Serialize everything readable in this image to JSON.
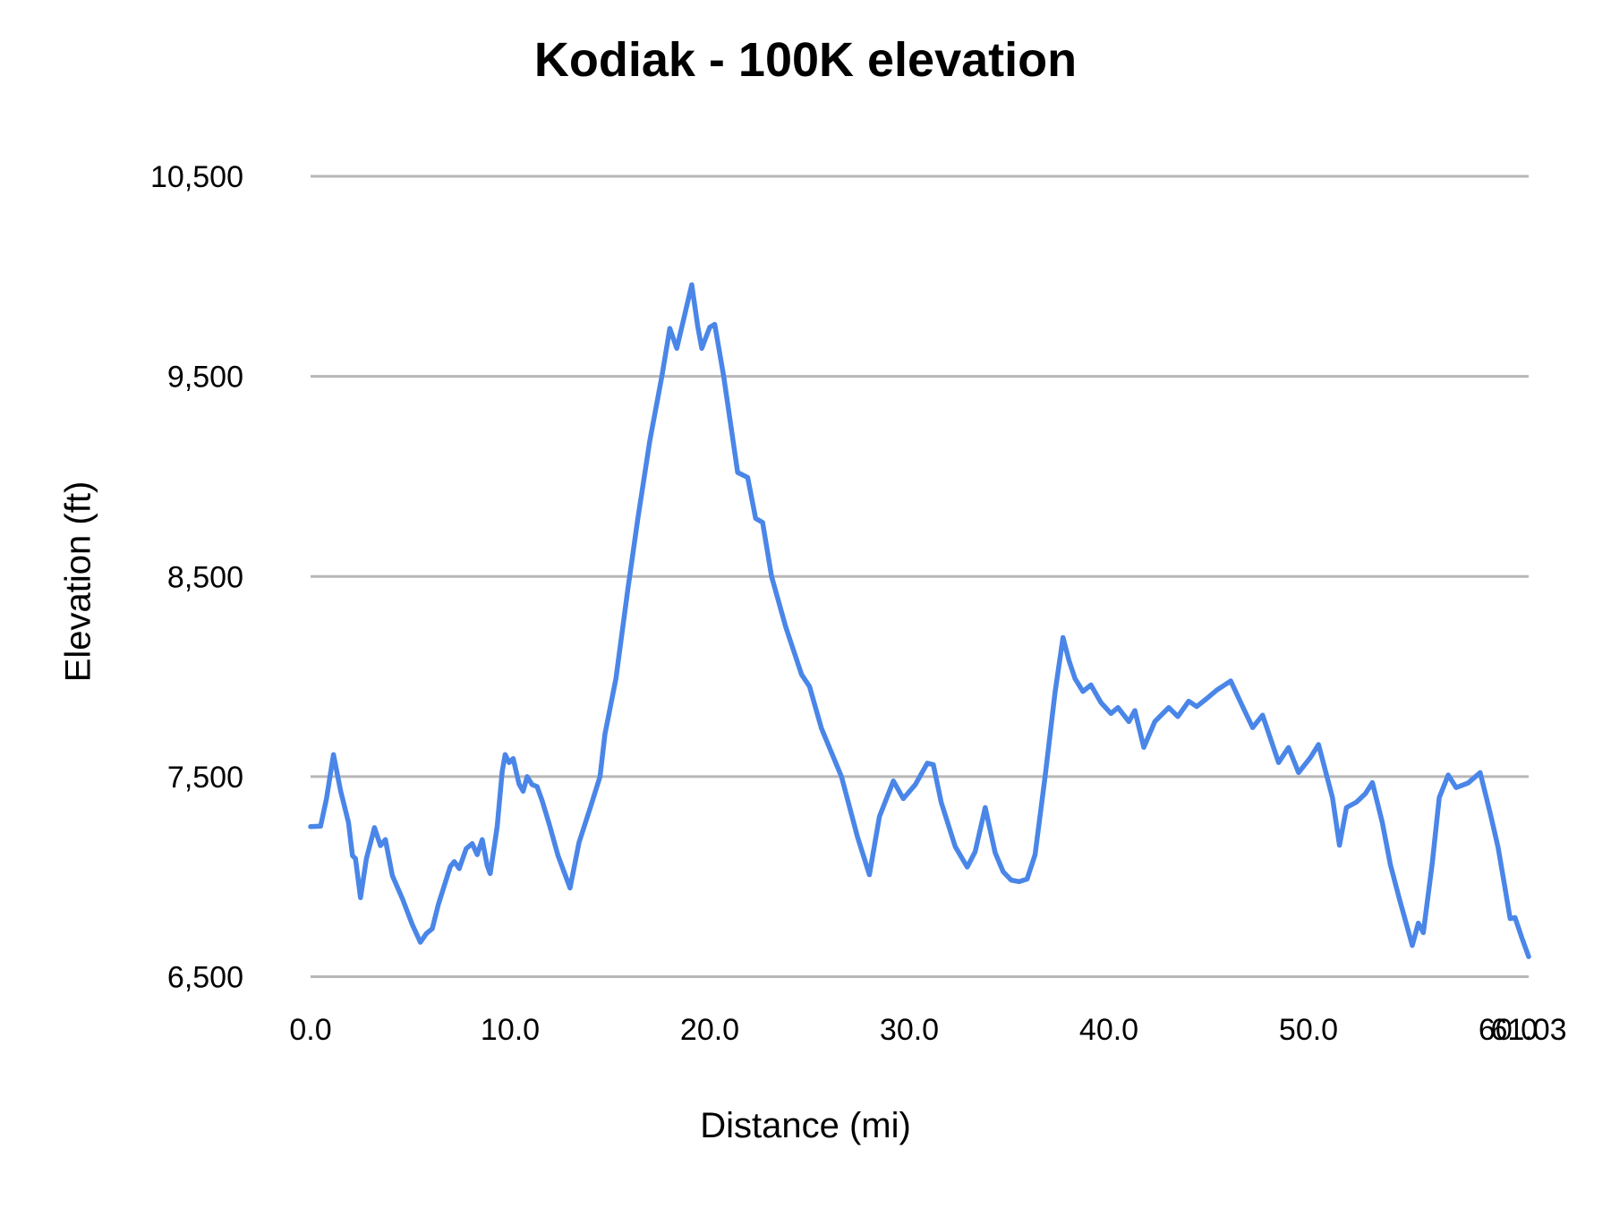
{
  "chart_data": {
    "type": "line",
    "title": "Kodiak - 100K elevation",
    "xlabel": "Distance (mi)",
    "ylabel": "Elevation (ft)",
    "xlim": [
      0,
      61.03
    ],
    "ylim": [
      6500,
      10500
    ],
    "grid": "horizontal-only",
    "legend_position": "none",
    "colors": {
      "line": "#4a86e8",
      "gridline": "#b7b7b7",
      "text": "#000000",
      "background": "#ffffff"
    },
    "x_ticks": [
      {
        "value": 0,
        "label": "0.0"
      },
      {
        "value": 10,
        "label": "10.0"
      },
      {
        "value": 20,
        "label": "20.0"
      },
      {
        "value": 30,
        "label": "30.0"
      },
      {
        "value": 40,
        "label": "40.0"
      },
      {
        "value": 50,
        "label": "50.0"
      },
      {
        "value": 60,
        "label": "60.0"
      },
      {
        "value": 61.03,
        "label": "61.03"
      }
    ],
    "y_ticks": [
      {
        "value": 6500,
        "label": "6,500"
      },
      {
        "value": 7500,
        "label": "7,500"
      },
      {
        "value": 8500,
        "label": "8,500"
      },
      {
        "value": 9500,
        "label": "9,500"
      },
      {
        "value": 10500,
        "label": "10,500"
      }
    ],
    "series": [
      {
        "name": "Elevation (ft)",
        "points": [
          [
            0.0,
            7250
          ],
          [
            0.5,
            7252
          ],
          [
            0.8,
            7390
          ],
          [
            1.15,
            7610
          ],
          [
            1.5,
            7430
          ],
          [
            1.9,
            7270
          ],
          [
            2.1,
            7105
          ],
          [
            2.25,
            7090
          ],
          [
            2.5,
            6895
          ],
          [
            2.8,
            7090
          ],
          [
            3.2,
            7245
          ],
          [
            3.5,
            7155
          ],
          [
            3.75,
            7185
          ],
          [
            4.1,
            7005
          ],
          [
            4.6,
            6890
          ],
          [
            5.1,
            6760
          ],
          [
            5.5,
            6672
          ],
          [
            5.8,
            6715
          ],
          [
            6.1,
            6740
          ],
          [
            6.4,
            6860
          ],
          [
            6.7,
            6955
          ],
          [
            7.0,
            7050
          ],
          [
            7.2,
            7075
          ],
          [
            7.45,
            7040
          ],
          [
            7.8,
            7140
          ],
          [
            8.1,
            7165
          ],
          [
            8.35,
            7110
          ],
          [
            8.6,
            7185
          ],
          [
            8.85,
            7055
          ],
          [
            9.0,
            7015
          ],
          [
            9.35,
            7250
          ],
          [
            9.6,
            7525
          ],
          [
            9.75,
            7610
          ],
          [
            9.95,
            7570
          ],
          [
            10.15,
            7590
          ],
          [
            10.45,
            7462
          ],
          [
            10.65,
            7427
          ],
          [
            10.85,
            7500
          ],
          [
            11.1,
            7460
          ],
          [
            11.35,
            7450
          ],
          [
            11.6,
            7380
          ],
          [
            11.95,
            7265
          ],
          [
            12.4,
            7105
          ],
          [
            13.0,
            6943
          ],
          [
            13.45,
            7170
          ],
          [
            14.0,
            7340
          ],
          [
            14.5,
            7500
          ],
          [
            14.75,
            7712
          ],
          [
            15.3,
            7990
          ],
          [
            15.9,
            8440
          ],
          [
            16.4,
            8790
          ],
          [
            17.0,
            9180
          ],
          [
            17.6,
            9500
          ],
          [
            18.0,
            9740
          ],
          [
            18.35,
            9640
          ],
          [
            18.8,
            9830
          ],
          [
            19.1,
            9958
          ],
          [
            19.4,
            9750
          ],
          [
            19.6,
            9640
          ],
          [
            20.0,
            9745
          ],
          [
            20.25,
            9760
          ],
          [
            20.7,
            9500
          ],
          [
            21.4,
            9020
          ],
          [
            21.9,
            8995
          ],
          [
            22.3,
            8790
          ],
          [
            22.65,
            8770
          ],
          [
            23.1,
            8500
          ],
          [
            23.8,
            8250
          ],
          [
            24.6,
            8010
          ],
          [
            25.0,
            7950
          ],
          [
            25.6,
            7740
          ],
          [
            26.6,
            7500
          ],
          [
            27.4,
            7200
          ],
          [
            28.0,
            7010
          ],
          [
            28.5,
            7300
          ],
          [
            29.2,
            7478
          ],
          [
            29.7,
            7390
          ],
          [
            30.3,
            7460
          ],
          [
            30.9,
            7567
          ],
          [
            31.2,
            7560
          ],
          [
            31.6,
            7370
          ],
          [
            32.3,
            7150
          ],
          [
            32.9,
            7048
          ],
          [
            33.3,
            7125
          ],
          [
            33.8,
            7345
          ],
          [
            34.3,
            7120
          ],
          [
            34.7,
            7025
          ],
          [
            35.1,
            6983
          ],
          [
            35.5,
            6975
          ],
          [
            35.9,
            6988
          ],
          [
            36.3,
            7110
          ],
          [
            36.8,
            7500
          ],
          [
            37.3,
            7920
          ],
          [
            37.7,
            8195
          ],
          [
            38.0,
            8080
          ],
          [
            38.3,
            7990
          ],
          [
            38.7,
            7925
          ],
          [
            39.1,
            7958
          ],
          [
            39.6,
            7870
          ],
          [
            40.1,
            7815
          ],
          [
            40.45,
            7845
          ],
          [
            41.0,
            7775
          ],
          [
            41.3,
            7830
          ],
          [
            41.75,
            7646
          ],
          [
            42.3,
            7775
          ],
          [
            43.0,
            7845
          ],
          [
            43.45,
            7800
          ],
          [
            44.0,
            7877
          ],
          [
            44.4,
            7850
          ],
          [
            44.9,
            7890
          ],
          [
            45.4,
            7932
          ],
          [
            46.1,
            7978
          ],
          [
            46.7,
            7850
          ],
          [
            47.2,
            7745
          ],
          [
            47.7,
            7807
          ],
          [
            48.5,
            7570
          ],
          [
            49.0,
            7645
          ],
          [
            49.5,
            7520
          ],
          [
            50.1,
            7596
          ],
          [
            50.5,
            7660
          ],
          [
            51.2,
            7395
          ],
          [
            51.55,
            7157
          ],
          [
            51.9,
            7345
          ],
          [
            52.4,
            7372
          ],
          [
            52.85,
            7415
          ],
          [
            53.2,
            7470
          ],
          [
            53.7,
            7270
          ],
          [
            54.1,
            7060
          ],
          [
            54.55,
            6890
          ],
          [
            55.2,
            6656
          ],
          [
            55.5,
            6768
          ],
          [
            55.75,
            6720
          ],
          [
            56.2,
            7068
          ],
          [
            56.55,
            7395
          ],
          [
            57.0,
            7508
          ],
          [
            57.4,
            7445
          ],
          [
            58.0,
            7468
          ],
          [
            58.6,
            7520
          ],
          [
            59.1,
            7318
          ],
          [
            59.5,
            7145
          ],
          [
            59.85,
            6940
          ],
          [
            60.1,
            6790
          ],
          [
            60.35,
            6795
          ],
          [
            60.7,
            6692
          ],
          [
            61.03,
            6600
          ]
        ]
      }
    ]
  }
}
